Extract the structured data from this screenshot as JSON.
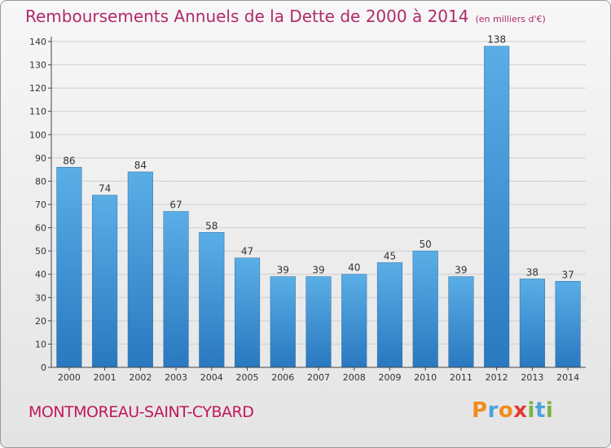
{
  "header": {
    "title": "Remboursements Annuels de la Dette de 2000 à 2014",
    "unit": "(en milliers d'€)"
  },
  "footer": {
    "commune": "MONTMOREAU-SAINT-CYBARD",
    "logo": {
      "letters": [
        "P",
        "r",
        "o",
        "x",
        "i",
        "t",
        "i"
      ],
      "colors": [
        "#f28c1a",
        "#4aa3df",
        "#f28c1a",
        "#e53935",
        "#7cb342",
        "#4aa3df",
        "#7cb342"
      ]
    }
  },
  "colors": {
    "title": "#b02a6b",
    "commune": "#c2185b",
    "bar_top": "#5aaee6",
    "bar_bottom": "#2a78c0",
    "grid": "#cfcfcf"
  },
  "chart_data": {
    "type": "bar",
    "title": "Remboursements Annuels de la Dette de 2000 à 2014",
    "subtitle": "(en milliers d'€)",
    "xlabel": "",
    "ylabel": "",
    "categories": [
      "2000",
      "2001",
      "2002",
      "2003",
      "2004",
      "2005",
      "2006",
      "2007",
      "2008",
      "2009",
      "2010",
      "2011",
      "2012",
      "2013",
      "2014"
    ],
    "values": [
      86,
      74,
      84,
      67,
      58,
      47,
      39,
      39,
      40,
      45,
      50,
      39,
      138,
      38,
      37
    ],
    "ylim": [
      0,
      140
    ],
    "yticks": [
      0,
      10,
      20,
      30,
      40,
      50,
      60,
      70,
      80,
      90,
      100,
      110,
      120,
      130,
      140
    ],
    "grid": true,
    "data_labels": true
  }
}
